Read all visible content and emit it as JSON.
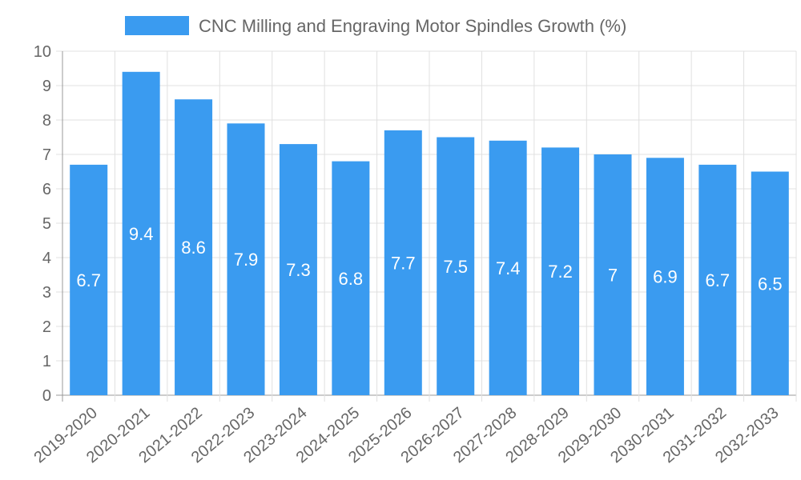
{
  "chart_data": {
    "type": "bar",
    "categories": [
      "2019-2020",
      "2020-2021",
      "2021-2022",
      "2022-2023",
      "2023-2024",
      "2024-2025",
      "2025-2026",
      "2026-2027",
      "2027-2028",
      "2028-2029",
      "2029-2030",
      "2030-2031",
      "2031-2032",
      "2032-2033"
    ],
    "series": [
      {
        "name": "CNC Milling and Engraving Motor Spindles Growth (%)",
        "values": [
          6.7,
          9.4,
          8.6,
          7.9,
          7.3,
          6.8,
          7.7,
          7.5,
          7.4,
          7.2,
          7,
          6.9,
          6.7,
          6.5
        ],
        "color": "#3a9bf0"
      }
    ],
    "yticks": [
      "0",
      "1",
      "2",
      "3",
      "4",
      "5",
      "6",
      "7",
      "8",
      "9",
      "10"
    ],
    "ylim": [
      0,
      10
    ],
    "grid": true,
    "legend_position": "top-center",
    "data_labels": true
  }
}
